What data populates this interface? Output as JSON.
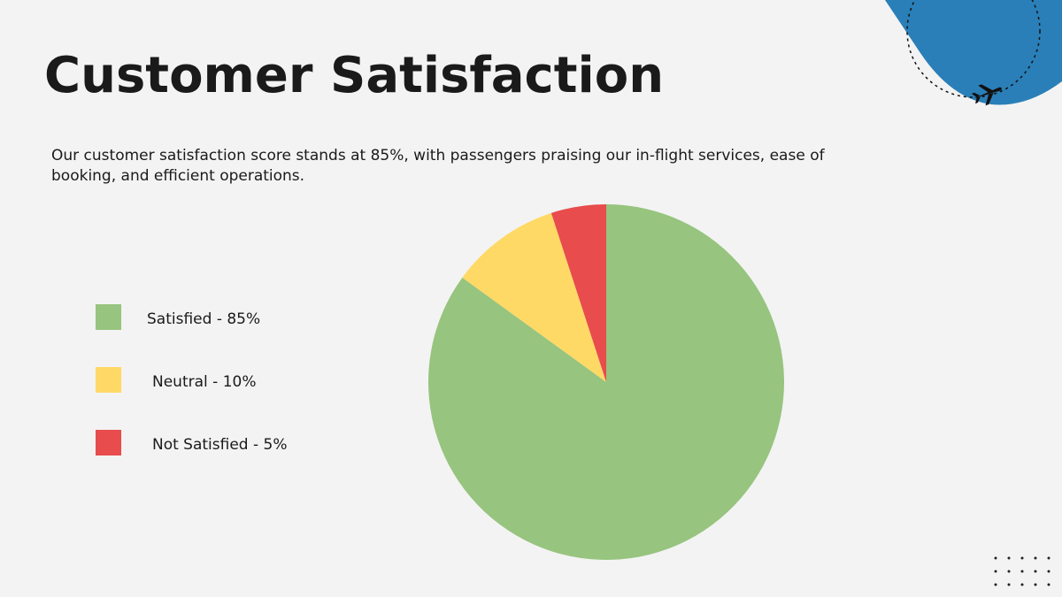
{
  "chart_data": {
    "type": "pie",
    "title": "Customer Satisfaction",
    "subtitle": "Our customer satisfaction score stands at 85%, with passengers praising our in-flight services, ease of booking, and efficient operations.",
    "categories": [
      "Satisfied - 85%",
      "Neutral - 10%",
      "Not Satisfied - 5%"
    ],
    "values": [
      85,
      10,
      5
    ],
    "colors": [
      "#97c47e",
      "#ffd966",
      "#e84c4c"
    ]
  }
}
